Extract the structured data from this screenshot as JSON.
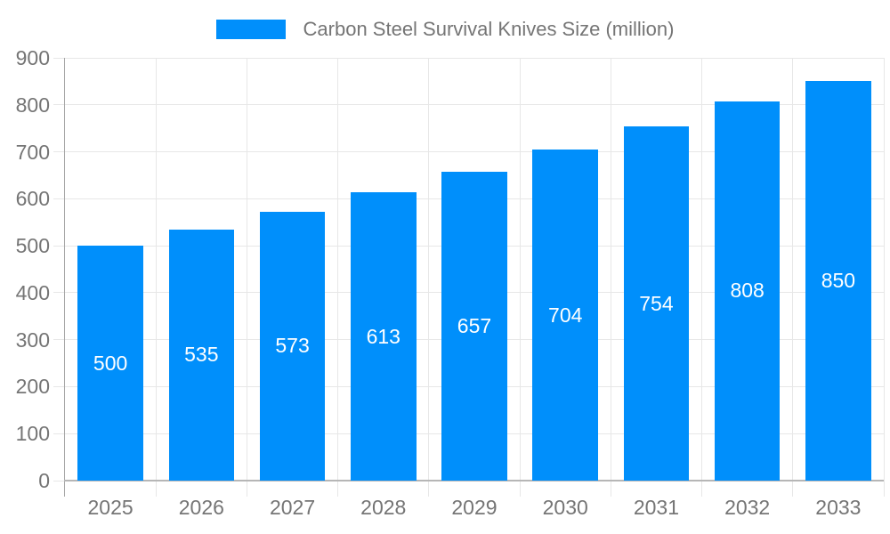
{
  "legend": {
    "label": "Carbon Steel Survival Knives Size (million)"
  },
  "chart_data": {
    "type": "bar",
    "title": "Carbon Steel Survival Knives Size (million)",
    "series_name": "Carbon Steel Survival Knives Size (million)",
    "categories": [
      "2025",
      "2026",
      "2027",
      "2028",
      "2029",
      "2030",
      "2031",
      "2032",
      "2033"
    ],
    "values": [
      500,
      535,
      573,
      613,
      657,
      704,
      754,
      808,
      850
    ],
    "value_labels": [
      "500",
      "535",
      "573",
      "613",
      "657",
      "704",
      "754",
      "808",
      "850"
    ],
    "xlabel": "",
    "ylabel": "",
    "ylim": [
      0,
      900
    ],
    "yticks": [
      0,
      100,
      200,
      300,
      400,
      500,
      600,
      700,
      800,
      900
    ],
    "grid": true,
    "legend_position": "top",
    "value_label_position": "center-inside",
    "colors": {
      "bar": "#008FFB",
      "value_label": "#ffffff",
      "axis_label": "#757575",
      "gridline": "#e7e7e7",
      "axis_line": "#a6a6a6",
      "baseline": "#b6b6b6"
    }
  }
}
